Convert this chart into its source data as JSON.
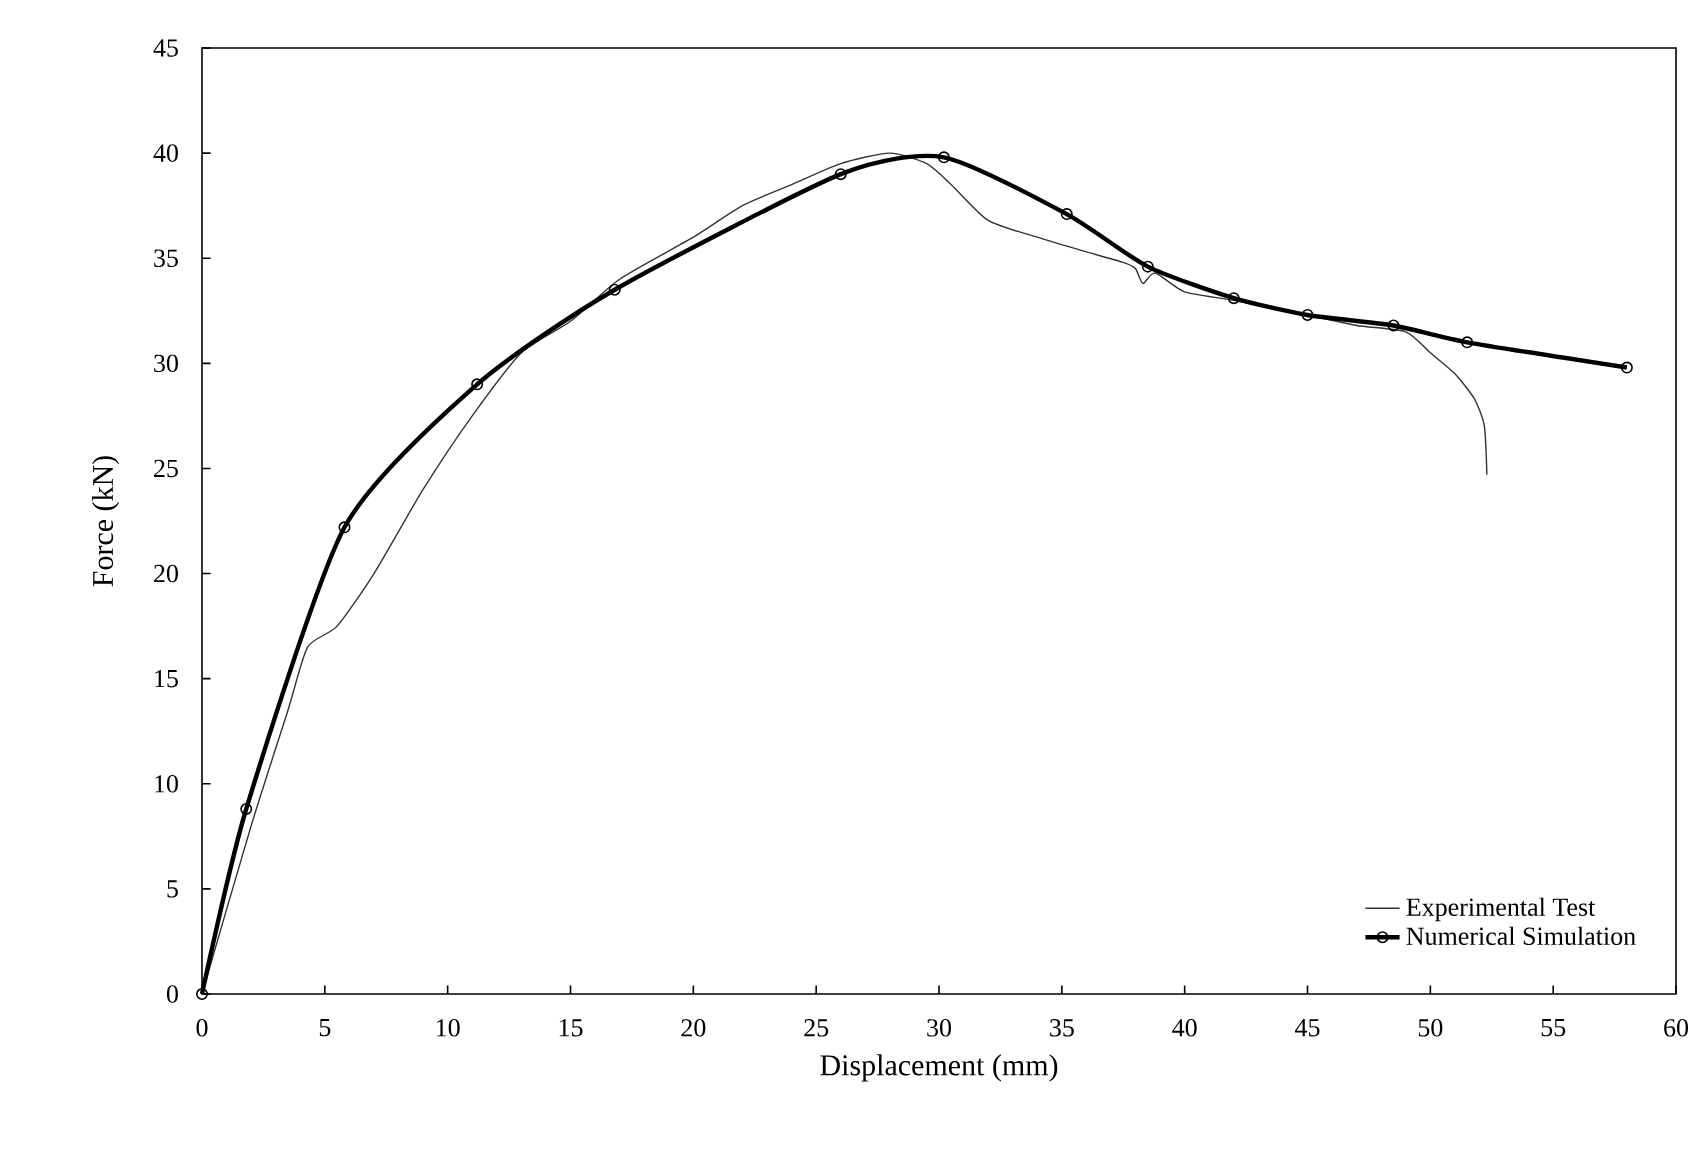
{
  "chart_data": {
    "type": "line",
    "xlabel": "Displacement (mm)",
    "ylabel": "Force (kN)",
    "xlim": [
      0,
      60
    ],
    "xticks": [
      0,
      5,
      10,
      15,
      20,
      25,
      30,
      35,
      40,
      45,
      50,
      55,
      60
    ],
    "ylim": [
      0,
      45
    ],
    "yticks": [
      0,
      5,
      10,
      15,
      20,
      25,
      30,
      35,
      40,
      45
    ],
    "grid": false,
    "legend": "bottom right",
    "series": [
      {
        "name": "Experimental Test",
        "color": "#333333",
        "marker": "none",
        "x": [
          0,
          2,
          3.5,
          4.3,
          5.5,
          7,
          9,
          11,
          13,
          15,
          17,
          20,
          22,
          24,
          26,
          28,
          29.5,
          30.5,
          32,
          34,
          36,
          37.5,
          38,
          38.3,
          38.8,
          40,
          42,
          45,
          47,
          49,
          50,
          51,
          51.8,
          52.2,
          52.3
        ],
        "values": [
          0,
          8,
          13.5,
          16.5,
          17.5,
          20,
          24,
          27.5,
          30.5,
          32,
          34,
          36,
          37.5,
          38.5,
          39.5,
          40,
          39.5,
          38.5,
          36.8,
          36,
          35.3,
          34.8,
          34.5,
          33.8,
          34.3,
          33.4,
          33,
          32.3,
          31.8,
          31.5,
          30.5,
          29.5,
          28.3,
          27,
          24.7
        ]
      },
      {
        "name": "Numerical Simulation",
        "color": "#000000",
        "marker": "circle",
        "x": [
          0,
          1.8,
          5.8,
          11.2,
          16.8,
          26,
          30.2,
          35.2,
          38.5,
          42,
          45,
          48.5,
          51.5,
          58
        ],
        "values": [
          0,
          8.8,
          22.2,
          29,
          33.5,
          39,
          39.8,
          37.1,
          34.6,
          33.1,
          32.3,
          31.8,
          31,
          29.8
        ]
      }
    ]
  }
}
